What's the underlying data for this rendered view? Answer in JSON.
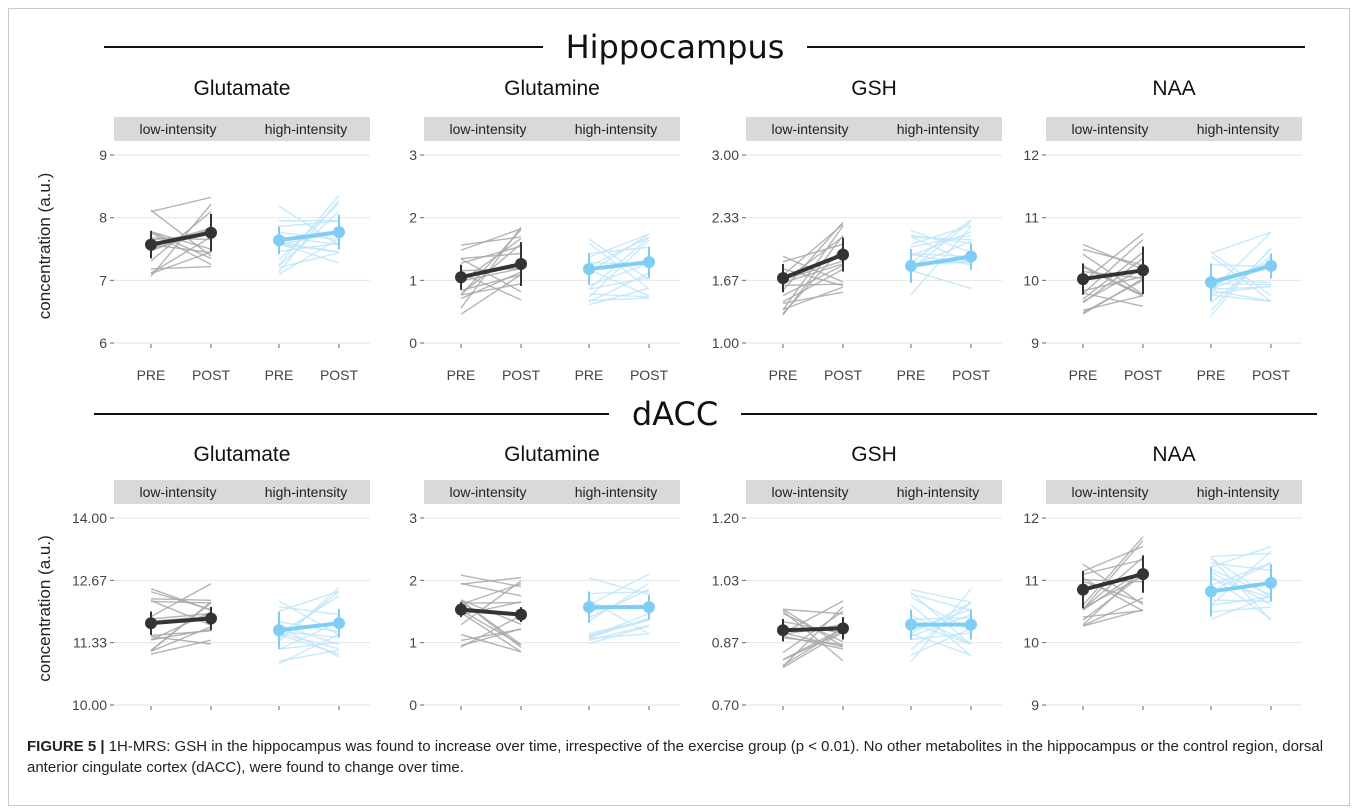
{
  "figure": {
    "sections": [
      {
        "title": "Hippocampus"
      },
      {
        "title": "dACC"
      }
    ],
    "ylabel": "concentration (a.u.)",
    "facets": [
      "low-intensity",
      "high-intensity"
    ],
    "time_labels": [
      "PRE",
      "POST"
    ],
    "colors": {
      "low": "#333333",
      "high": "#7fcdf4",
      "low_ind": "#a8a8a8",
      "high_ind": "#bfe6fa"
    }
  },
  "caption": {
    "label": "FIGURE 5 |",
    "text": " 1H-MRS: GSH in the hippocampus was found to increase over time, irrespective of the exercise group (p < 0.01). No other metabolites in the hippocampus or the control region, dorsal anterior cingulate cortex (dACC), were found to change over time."
  },
  "chart_data": [
    {
      "type": "line",
      "region": "Hippocampus",
      "title": "Glutamate",
      "yticks": [
        "6",
        "7",
        "8",
        "9"
      ],
      "ylim": [
        6,
        9
      ],
      "series": [
        {
          "name": "low-intensity",
          "x": [
            "PRE",
            "POST"
          ],
          "mean": [
            7.57,
            7.76
          ],
          "err": [
            0.22,
            0.3
          ]
        },
        {
          "name": "high-intensity",
          "x": [
            "PRE",
            "POST"
          ],
          "mean": [
            7.64,
            7.77
          ],
          "err": [
            0.22,
            0.28
          ]
        }
      ]
    },
    {
      "type": "line",
      "region": "Hippocampus",
      "title": "Glutamine",
      "yticks": [
        "0",
        "1",
        "2",
        "3"
      ],
      "ylim": [
        0,
        3
      ],
      "series": [
        {
          "name": "low-intensity",
          "x": [
            "PRE",
            "POST"
          ],
          "mean": [
            1.05,
            1.26
          ],
          "err": [
            0.2,
            0.35
          ]
        },
        {
          "name": "high-intensity",
          "x": [
            "PRE",
            "POST"
          ],
          "mean": [
            1.18,
            1.29
          ],
          "err": [
            0.25,
            0.25
          ]
        }
      ]
    },
    {
      "type": "line",
      "region": "Hippocampus",
      "title": "GSH",
      "yticks": [
        "1.00",
        "1.67",
        "2.33",
        "3.00"
      ],
      "ylim": [
        1,
        3
      ],
      "series": [
        {
          "name": "low-intensity",
          "x": [
            "PRE",
            "POST"
          ],
          "mean": [
            1.69,
            1.94
          ],
          "err": [
            0.15,
            0.18
          ]
        },
        {
          "name": "high-intensity",
          "x": [
            "PRE",
            "POST"
          ],
          "mean": [
            1.82,
            1.92
          ],
          "err": [
            0.18,
            0.14
          ]
        }
      ]
    },
    {
      "type": "line",
      "region": "Hippocampus",
      "title": "NAA",
      "yticks": [
        "9",
        "10",
        "11",
        "12"
      ],
      "ylim": [
        9,
        12
      ],
      "series": [
        {
          "name": "low-intensity",
          "x": [
            "PRE",
            "POST"
          ],
          "mean": [
            10.02,
            10.16
          ],
          "err": [
            0.25,
            0.38
          ]
        },
        {
          "name": "high-intensity",
          "x": [
            "PRE",
            "POST"
          ],
          "mean": [
            9.97,
            10.23
          ],
          "err": [
            0.3,
            0.2
          ]
        }
      ]
    },
    {
      "type": "line",
      "region": "dACC",
      "title": "Glutamate",
      "yticks": [
        "10.00",
        "11.33",
        "12.67",
        "14.00"
      ],
      "ylim": [
        10,
        14
      ],
      "series": [
        {
          "name": "low-intensity",
          "x": [
            "PRE",
            "POST"
          ],
          "mean": [
            11.75,
            11.85
          ],
          "err": [
            0.25,
            0.25
          ]
        },
        {
          "name": "high-intensity",
          "x": [
            "PRE",
            "POST"
          ],
          "mean": [
            11.6,
            11.75
          ],
          "err": [
            0.4,
            0.3
          ]
        }
      ]
    },
    {
      "type": "line",
      "region": "dACC",
      "title": "Glutamine",
      "yticks": [
        "0",
        "1",
        "2",
        "3"
      ],
      "ylim": [
        0,
        3
      ],
      "series": [
        {
          "name": "low-intensity",
          "x": [
            "PRE",
            "POST"
          ],
          "mean": [
            1.53,
            1.45
          ],
          "err": [
            0.12,
            0.12
          ]
        },
        {
          "name": "high-intensity",
          "x": [
            "PRE",
            "POST"
          ],
          "mean": [
            1.57,
            1.57
          ],
          "err": [
            0.25,
            0.2
          ]
        }
      ]
    },
    {
      "type": "line",
      "region": "dACC",
      "title": "GSH",
      "yticks": [
        "0.70",
        "0.87",
        "1.03",
        "1.20"
      ],
      "ylim": [
        0.7,
        1.2
      ],
      "series": [
        {
          "name": "low-intensity",
          "x": [
            "PRE",
            "POST"
          ],
          "mean": [
            0.9,
            0.905
          ],
          "err": [
            0.03,
            0.03
          ]
        },
        {
          "name": "high-intensity",
          "x": [
            "PRE",
            "POST"
          ],
          "mean": [
            0.915,
            0.915
          ],
          "err": [
            0.04,
            0.04
          ]
        }
      ]
    },
    {
      "type": "line",
      "region": "dACC",
      "title": "NAA",
      "yticks": [
        "9",
        "10",
        "11",
        "12"
      ],
      "ylim": [
        9,
        12
      ],
      "series": [
        {
          "name": "low-intensity",
          "x": [
            "PRE",
            "POST"
          ],
          "mean": [
            10.85,
            11.1
          ],
          "err": [
            0.3,
            0.3
          ]
        },
        {
          "name": "high-intensity",
          "x": [
            "PRE",
            "POST"
          ],
          "mean": [
            10.82,
            10.96
          ],
          "err": [
            0.4,
            0.3
          ]
        }
      ]
    }
  ]
}
